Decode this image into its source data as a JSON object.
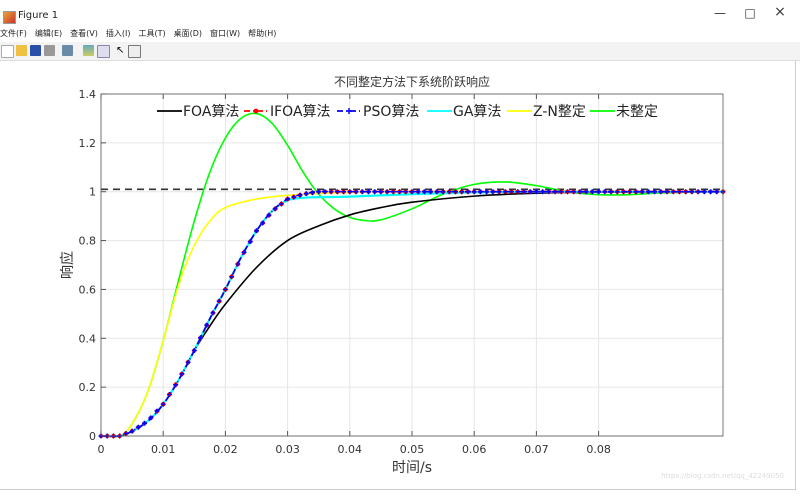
{
  "window": {
    "title": "Figure 1",
    "minimize": "—",
    "maximize": "□",
    "close": "×"
  },
  "menu": [
    "文件(F)",
    "编辑(E)",
    "查看(V)",
    "插入(I)",
    "工具(T)",
    "桌面(D)",
    "窗口(W)",
    "帮助(H)"
  ],
  "toolbar_icons": [
    "new-icon",
    "open-icon",
    "save-icon",
    "print-icon",
    "link-icon",
    "colorbar-icon",
    "legend-icon",
    "pointer-icon",
    "property-editor-icon"
  ],
  "watermark": "https://blog.csdn.net/qq_42249050",
  "chart_data": {
    "type": "line",
    "title": "不同整定方法下系统阶跃响应",
    "xlabel": "时间/s",
    "ylabel": "响应",
    "xlim": [
      0,
      0.1
    ],
    "ylim": [
      0,
      1.4
    ],
    "xticks": [
      "0",
      "0.01",
      "0.02",
      "0.03",
      "0.04",
      "0.05",
      "0.06",
      "0.07",
      "0.08"
    ],
    "yticks": [
      "0",
      "0.2",
      "0.4",
      "0.6",
      "0.8",
      "1",
      "1.2",
      "1.4"
    ],
    "grid": true,
    "legend_placement": "top",
    "reference_line": {
      "y": 1,
      "style": "dashed",
      "color": "#333333"
    },
    "series": [
      {
        "name": "FOA算法",
        "color": "#000000",
        "style": "solid",
        "x": [
          0,
          0.003,
          0.005,
          0.0075,
          0.01,
          0.0125,
          0.015,
          0.0175,
          0.02,
          0.025,
          0.03,
          0.035,
          0.04,
          0.045,
          0.05,
          0.06,
          0.07,
          0.08,
          0.1
        ],
        "y": [
          0,
          0,
          0.02,
          0.06,
          0.13,
          0.23,
          0.35,
          0.45,
          0.54,
          0.69,
          0.8,
          0.86,
          0.905,
          0.935,
          0.957,
          0.982,
          0.994,
          0.998,
          1
        ]
      },
      {
        "name": "IFOA算法",
        "color": "#ff0000",
        "style": "dashdot",
        "marker": "dot",
        "x": [
          0,
          0.003,
          0.005,
          0.0075,
          0.01,
          0.0125,
          0.015,
          0.0175,
          0.02,
          0.0225,
          0.025,
          0.0275,
          0.03,
          0.0325,
          0.035,
          0.04,
          0.05,
          0.1
        ],
        "y": [
          0,
          0,
          0.02,
          0.06,
          0.13,
          0.23,
          0.35,
          0.48,
          0.6,
          0.73,
          0.84,
          0.92,
          0.97,
          0.99,
          1,
          1,
          1,
          1
        ]
      },
      {
        "name": "PSO算法",
        "color": "#0000ff",
        "style": "dashdot",
        "marker": "plus",
        "x": [
          0,
          0.003,
          0.005,
          0.0075,
          0.01,
          0.0125,
          0.015,
          0.0175,
          0.02,
          0.0225,
          0.025,
          0.0275,
          0.03,
          0.0325,
          0.035,
          0.04,
          0.05,
          0.1
        ],
        "y": [
          0,
          0,
          0.02,
          0.06,
          0.13,
          0.23,
          0.35,
          0.48,
          0.6,
          0.73,
          0.84,
          0.92,
          0.97,
          0.99,
          1,
          1,
          1,
          1
        ]
      },
      {
        "name": "GA算法",
        "color": "#00ffff",
        "style": "solid",
        "x": [
          0,
          0.003,
          0.005,
          0.0075,
          0.01,
          0.0125,
          0.015,
          0.0175,
          0.02,
          0.0225,
          0.025,
          0.0275,
          0.03,
          0.0325,
          0.035,
          0.04,
          0.05,
          0.06,
          0.07,
          0.1
        ],
        "y": [
          0,
          0,
          0.02,
          0.06,
          0.13,
          0.23,
          0.35,
          0.48,
          0.6,
          0.73,
          0.84,
          0.92,
          0.965,
          0.975,
          0.978,
          0.98,
          0.99,
          0.997,
          1,
          1
        ]
      },
      {
        "name": "Z-N整定",
        "color": "#ffff00",
        "style": "solid",
        "x": [
          0,
          0.003,
          0.005,
          0.0075,
          0.01,
          0.0125,
          0.015,
          0.0175,
          0.02,
          0.025,
          0.03,
          0.035,
          0.04,
          0.05,
          0.1
        ],
        "y": [
          0,
          0,
          0.05,
          0.18,
          0.39,
          0.62,
          0.78,
          0.88,
          0.935,
          0.97,
          0.985,
          0.993,
          0.997,
          1,
          1
        ]
      },
      {
        "name": "未整定",
        "color": "#00ff00",
        "style": "solid",
        "x": [
          0,
          0.003,
          0.005,
          0.0075,
          0.01,
          0.0125,
          0.015,
          0.0175,
          0.02,
          0.0225,
          0.025,
          0.0275,
          0.03,
          0.0325,
          0.035,
          0.0375,
          0.04,
          0.0425,
          0.045,
          0.05,
          0.055,
          0.06,
          0.065,
          0.07,
          0.075,
          0.08,
          0.085,
          0.09,
          0.1
        ],
        "y": [
          0,
          0,
          0.05,
          0.18,
          0.39,
          0.64,
          0.88,
          1.08,
          1.22,
          1.3,
          1.32,
          1.28,
          1.19,
          1.08,
          0.99,
          0.93,
          0.895,
          0.882,
          0.885,
          0.93,
          0.99,
          1.03,
          1.04,
          1.025,
          1,
          0.988,
          0.988,
          0.995,
          1
        ]
      }
    ]
  }
}
